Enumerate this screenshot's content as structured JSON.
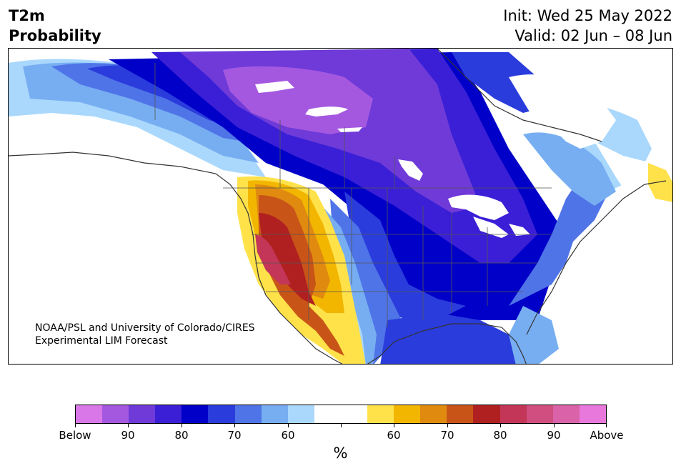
{
  "title": {
    "line1": "T2m",
    "line2": "Probability",
    "init": "Init: Wed 25 May 2022",
    "valid": "Valid: 02 Jun – 08 Jun"
  },
  "credit": {
    "line1": "NOAA/PSL and University of Colorado/CIRES",
    "line2": "Experimental LIM Forecast"
  },
  "colorbar": {
    "unit": "%",
    "colors": [
      "#d977e8",
      "#a458e0",
      "#6f3ad8",
      "#3a1fd6",
      "#0000c8",
      "#2a3cdc",
      "#4f74e8",
      "#77aef2",
      "#aad8fc",
      "#ffffff",
      "#ffffff",
      "#ffe24a",
      "#f2b600",
      "#e08a10",
      "#c85418",
      "#b02020",
      "#c43658",
      "#d04e80",
      "#da62a8",
      "#e878dc"
    ],
    "labels": [
      "Below",
      "90",
      "80",
      "70",
      "60",
      "",
      "60",
      "70",
      "80",
      "90",
      "Above"
    ]
  },
  "colors": {
    "coast": "#333333",
    "border": "#555555"
  }
}
